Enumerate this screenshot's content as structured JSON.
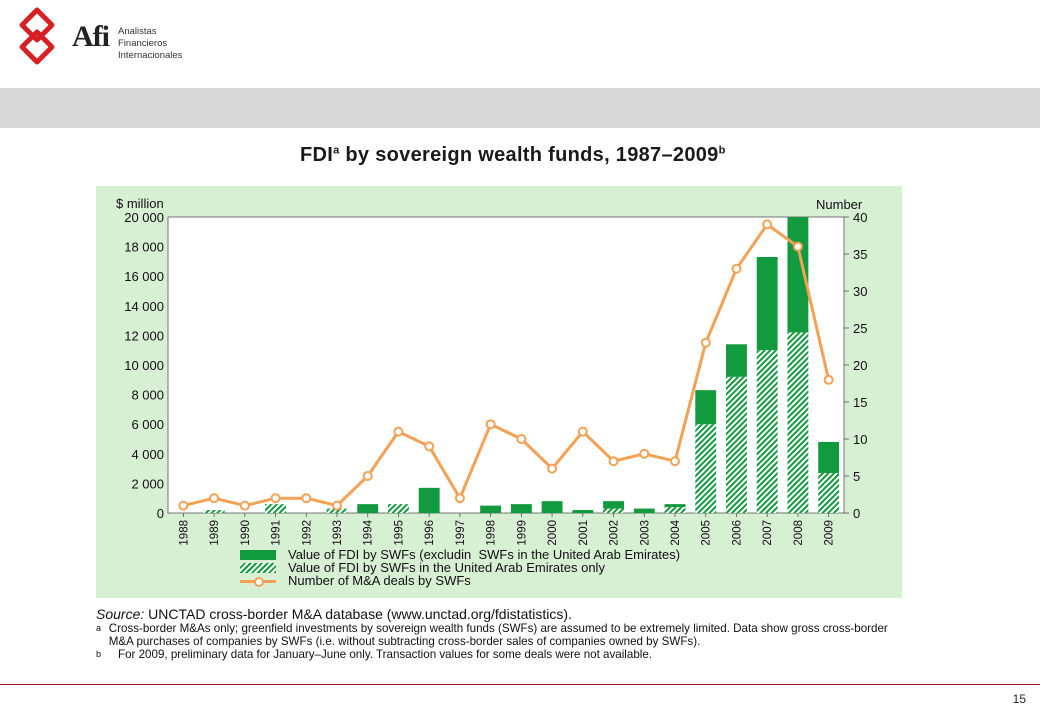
{
  "header": {
    "brand": "Afi",
    "brand_sub": [
      "Analistas",
      "Financieros",
      "Internacionales"
    ],
    "brand_color": "#d71f26"
  },
  "chart_title": "FDI",
  "chart_title_sup_a": "a",
  "chart_title_rest": " by sovereign wealth funds, 1987–2009",
  "chart_title_sup_b": "b",
  "chart_data": {
    "type": "bar",
    "categories": [
      "1988",
      "1989",
      "1990",
      "1991",
      "1992",
      "1993",
      "1994",
      "1995",
      "1996",
      "1997",
      "1998",
      "1999",
      "2000",
      "2001",
      "2002",
      "2003",
      "2004",
      "2005",
      "2006",
      "2007",
      "2008",
      "2009"
    ],
    "series": [
      {
        "name": "Value of FDI by SWFs (excludin  SWFs in the United Arab Emirates)",
        "type": "bar",
        "axis": "left",
        "color": "#129a3e",
        "pattern": "solid",
        "values": [
          0,
          0,
          0,
          0,
          0,
          0,
          600,
          0,
          1700,
          0,
          500,
          600,
          800,
          200,
          500,
          300,
          200,
          2300,
          2200,
          6300,
          7800,
          2100
        ]
      },
      {
        "name": "Value of FDI by SWFs in the United Arab Emirates only",
        "type": "bar",
        "axis": "left",
        "color": "#129a3e",
        "pattern": "hatched",
        "values": [
          0,
          200,
          0,
          600,
          0,
          300,
          0,
          600,
          0,
          0,
          0,
          0,
          0,
          0,
          300,
          0,
          400,
          6000,
          9200,
          11000,
          12200,
          2700
        ]
      },
      {
        "name": "Number of M&A deals by SWFs",
        "type": "line",
        "axis": "right",
        "color": "#f5a154",
        "values": [
          1,
          2,
          1,
          2,
          2,
          1,
          5,
          11,
          9,
          2,
          12,
          10,
          6,
          11,
          7,
          8,
          7,
          23,
          33,
          39,
          36,
          18
        ]
      }
    ],
    "y_left": {
      "label": "$ million",
      "ylim": [
        0,
        20000
      ],
      "ticks": [
        "0",
        "2 000",
        "4 000",
        "6 000",
        "8 000",
        "10 000",
        "12 000",
        "14 000",
        "16 000",
        "18 000",
        "20 000"
      ]
    },
    "y_right": {
      "label": "Number",
      "ylim": [
        0,
        40
      ],
      "ticks": [
        "0",
        "5",
        "10",
        "15",
        "20",
        "25",
        "30",
        "35",
        "40"
      ]
    },
    "grid": false,
    "legend_position": "bottom"
  },
  "notes": {
    "source_label": "Source:",
    "source_text": " UNCTAD cross-border M&A database (www.unctad.org/fdistatistics).",
    "a_mark": "a",
    "a_text": "Cross-border M&As only; greenfield investments by sovereign wealth funds (SWFs) are assumed to be extremely limited. Data show gross cross-border M&A purchases of companies by SWFs (i.e. without subtracting cross-border sales of companies owned by SWFs).",
    "b_mark": "b",
    "b_text": "For 2009, preliminary data for January–June only. Transaction values for some deals were not available."
  },
  "page_number": "15",
  "colors": {
    "chart_background": "#d7efd3",
    "plot_background": "#ffffff",
    "bar_green": "#129a3e",
    "line_orange": "#f5a154",
    "footer_rule": "#9c1b2b"
  }
}
